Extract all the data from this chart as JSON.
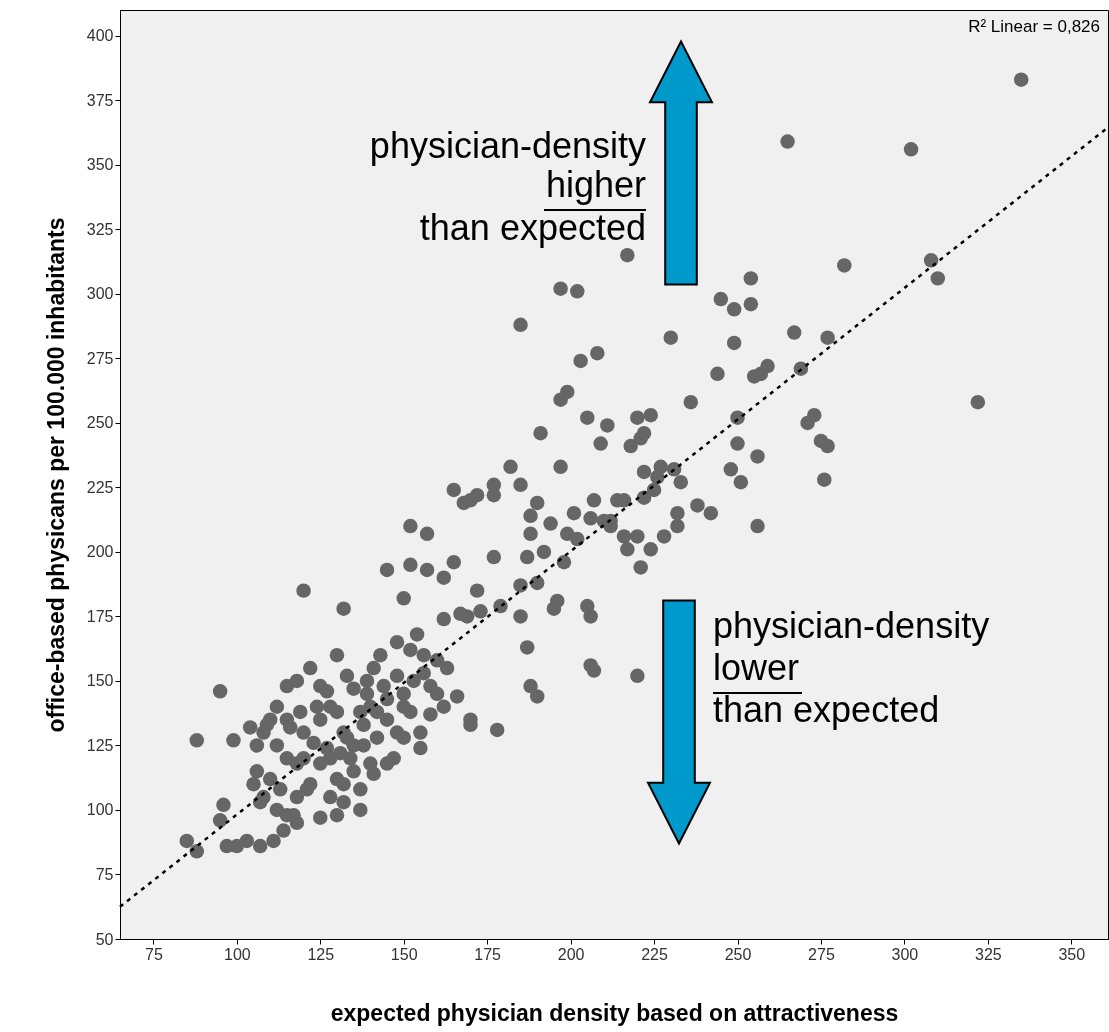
{
  "chart_data": {
    "type": "scatter",
    "xlabel": "expected physician density based on attractiveness",
    "ylabel": "office-based physicans per 100.000 inhabitants",
    "xlim": [
      65,
      361
    ],
    "ylim": [
      50,
      410
    ],
    "xticks": [
      75,
      100,
      125,
      150,
      175,
      200,
      225,
      250,
      275,
      300,
      325,
      350
    ],
    "yticks": [
      50,
      75,
      100,
      125,
      150,
      175,
      200,
      225,
      250,
      275,
      300,
      325,
      350,
      375,
      400
    ],
    "grid": false,
    "annotations": [
      "R² Linear = 0,826",
      "physician-density",
      "higher",
      "than expected",
      "physician-density",
      "lower",
      "than expected"
    ],
    "series": [
      {
        "marker": "circle",
        "color": "#666666",
        "x": [
          335,
          265,
          302,
          308,
          310,
          282,
          217,
          254,
          197,
          202,
          185,
          230,
          245,
          249,
          254,
          249,
          267,
          277,
          269,
          255,
          257,
          259,
          208,
          203,
          199,
          197,
          220,
          244,
          224,
          191,
          197,
          211,
          205,
          209,
          218,
          221,
          222,
          236,
          322,
          273,
          271,
          275,
          277,
          276,
          256,
          250,
          250,
          251,
          256,
          233,
          222,
          227,
          226,
          231,
          225,
          222,
          214,
          216,
          207,
          201,
          206,
          210,
          212,
          212,
          216,
          220,
          232,
          232,
          228,
          224,
          221,
          217,
          238,
          242,
          248,
          182,
          177,
          185,
          190,
          188,
          194,
          199,
          188,
          192,
          187,
          202,
          190,
          185,
          177,
          172,
          179,
          173,
          195,
          196,
          205,
          206,
          198,
          185,
          187,
          206,
          207,
          220,
          188,
          190,
          165,
          168,
          170,
          172,
          177,
          152,
          157,
          165,
          162,
          157,
          150,
          152,
          145,
          132,
          154,
          152,
          162,
          167,
          169,
          120,
          95,
          88,
          99,
          160,
          156,
          158,
          166,
          170,
          178,
          163,
          148,
          143,
          141,
          139,
          135,
          130,
          125,
          122,
          118,
          115,
          112,
          110,
          108,
          112,
          115,
          118,
          120,
          125,
          128,
          130,
          132,
          135,
          138,
          140,
          142,
          145,
          148,
          150,
          152,
          155,
          147,
          140,
          135,
          130,
          125,
          122,
          118,
          113,
          110,
          108,
          112,
          115,
          118,
          125,
          130,
          132,
          128,
          120,
          116,
          133,
          138,
          142,
          145,
          150,
          141,
          137,
          103,
          100,
          97,
          95,
          96,
          85,
          88,
          107,
          111,
          114,
          117,
          106,
          105,
          107,
          121,
          123,
          127,
          131,
          134,
          137,
          139,
          144,
          145,
          150,
          153,
          156,
          160,
          162,
          148,
          133,
          127,
          124,
          119,
          115,
          109,
          104,
          106,
          170,
          158,
          155,
          128,
          132,
          137
        ],
        "values": [
          383,
          359,
          356,
          313,
          306,
          311,
          315,
          306,
          302,
          301,
          288,
          283,
          298,
          294,
          296,
          281,
          285,
          283,
          271,
          268,
          269,
          272,
          277,
          274,
          262,
          259,
          252,
          269,
          253,
          246,
          233,
          249,
          252,
          242,
          241,
          244,
          246,
          258,
          258,
          253,
          250,
          243,
          241,
          228,
          237,
          252,
          242,
          227,
          210,
          227,
          231,
          233,
          229,
          232,
          224,
          221,
          220,
          220,
          220,
          215,
          213,
          212,
          212,
          210,
          206,
          206,
          215,
          210,
          206,
          201,
          194,
          201,
          218,
          215,
          232,
          233,
          226,
          226,
          219,
          214,
          211,
          207,
          207,
          200,
          198,
          205,
          188,
          187,
          198,
          185,
          179,
          177,
          178,
          181,
          179,
          175,
          196,
          175,
          163,
          156,
          154,
          152,
          148,
          144,
          224,
          219,
          220,
          222,
          222,
          210,
          207,
          196,
          190,
          193,
          182,
          195,
          193,
          178,
          168,
          162,
          174,
          176,
          175,
          185,
          146,
          127,
          127,
          158,
          160,
          148,
          144,
          135,
          131,
          155,
          165,
          160,
          155,
          150,
          147,
          160,
          148,
          155,
          150,
          148,
          140,
          135,
          130,
          125,
          120,
          118,
          130,
          135,
          140,
          138,
          130,
          125,
          133,
          140,
          138,
          135,
          130,
          140,
          138,
          130,
          120,
          118,
          115,
          112,
          118,
          110,
          105,
          108,
          112,
          105,
          100,
          98,
          95,
          97,
          98,
          110,
          120,
          120,
          132,
          128,
          125,
          128,
          118,
          128,
          114,
          108,
          88,
          86,
          86,
          96,
          102,
          88,
          84,
          86,
          88,
          92,
          98,
          115,
          110,
          103,
          108,
          126,
          124,
          122,
          120,
          138,
          145,
          148,
          143,
          145,
          150,
          153,
          145,
          140,
          152,
          152,
          146,
          140,
          138,
          135,
          133,
          132,
          125,
          133,
          137,
          124,
          105,
          103,
          100
        ]
      },
      {
        "type": "line",
        "color": "#000000",
        "line_style": "dashed",
        "x": [
          65,
          361
        ],
        "values": [
          62.5,
          364.5
        ]
      }
    ]
  }
}
